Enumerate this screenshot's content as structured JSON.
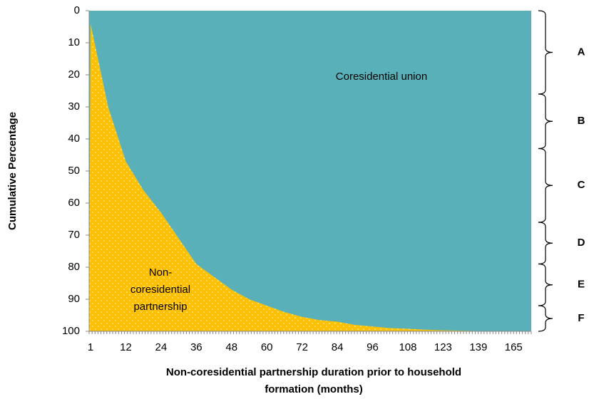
{
  "chart_data": {
    "type": "area",
    "x_title_lines": [
      "Non-coresidential partnership duration prior to household",
      "formation (months)"
    ],
    "y_title": "Cumulative Percentage",
    "categories": [
      "1",
      null,
      "12",
      null,
      "24",
      null,
      "36",
      null,
      "48",
      null,
      "60",
      null,
      "72",
      null,
      "84",
      null,
      "96",
      null,
      "108",
      null,
      "123",
      null,
      "139",
      null,
      "165",
      null
    ],
    "series": [
      {
        "name": "Non-coresidential partnership",
        "color": "#ffc000",
        "values": [
          4,
          30,
          47,
          56,
          63,
          71,
          79,
          83,
          87,
          90,
          92,
          94,
          95.5,
          96.5,
          97,
          98,
          98.5,
          99,
          99.2,
          99.5,
          99.7,
          99.8,
          99.9,
          100,
          100,
          100
        ]
      }
    ],
    "background_color": "#5ab0b8",
    "ylim": [
      0,
      100
    ],
    "y_inverted": true,
    "yticks": [
      0,
      10,
      20,
      30,
      40,
      50,
      60,
      70,
      80,
      90,
      100
    ],
    "annotations": {
      "upper": "Coresidential union",
      "lower_lines": [
        "Non-",
        "coresidential",
        "partnership"
      ]
    },
    "brackets": [
      {
        "label": "A",
        "from": 0,
        "to": 26
      },
      {
        "label": "B",
        "from": 26,
        "to": 43
      },
      {
        "label": "C",
        "from": 43,
        "to": 66
      },
      {
        "label": "D",
        "from": 66,
        "to": 79
      },
      {
        "label": "E",
        "from": 79,
        "to": 92
      },
      {
        "label": "F",
        "from": 92,
        "to": 100
      }
    ]
  }
}
